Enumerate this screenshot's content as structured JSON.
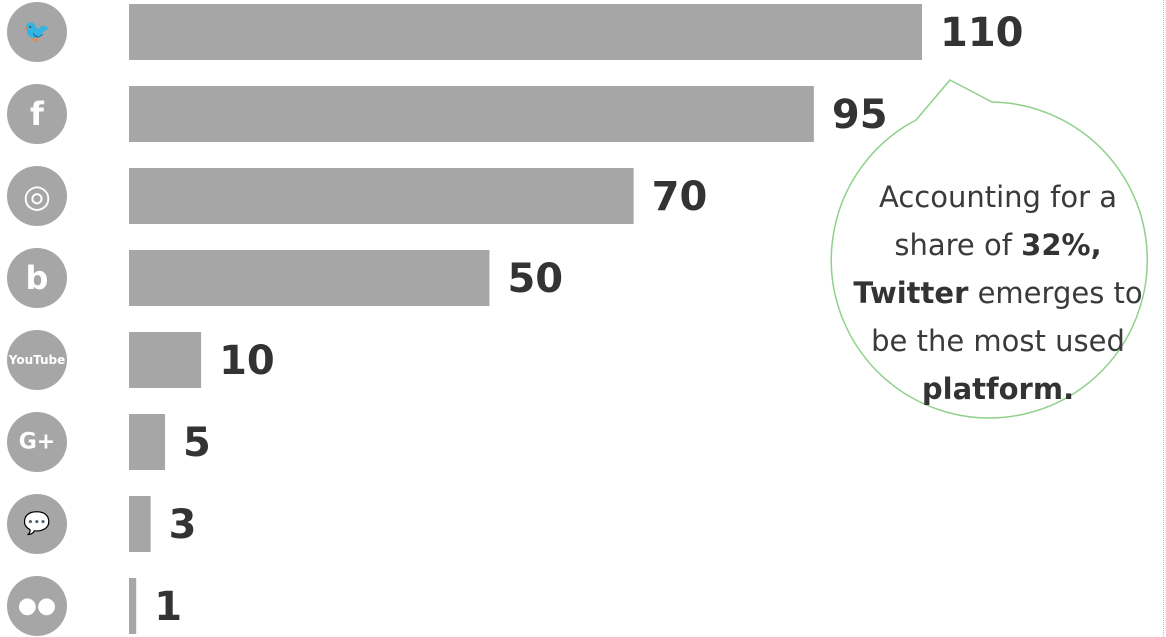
{
  "chart_data": {
    "type": "bar",
    "orientation": "horizontal",
    "categories": [
      "Twitter",
      "Facebook",
      "Instagram",
      "Blogger",
      "YouTube",
      "Google+",
      "Forums",
      "Flickr"
    ],
    "values": [
      110,
      95,
      70,
      50,
      10,
      5,
      3,
      1
    ],
    "value_labels": [
      "110",
      "95",
      "70",
      "50",
      "10",
      "5",
      "3",
      "1"
    ],
    "xlim": [
      0,
      110
    ],
    "grid": false,
    "legend": "none"
  },
  "icons": [
    {
      "name": "twitter-icon",
      "glyph": "🐦"
    },
    {
      "name": "facebook-icon",
      "glyph": "f"
    },
    {
      "name": "instagram-icon",
      "glyph": "◎"
    },
    {
      "name": "blogger-icon",
      "glyph": "b"
    },
    {
      "name": "youtube-icon",
      "glyph": "YouTube"
    },
    {
      "name": "google-plus-icon",
      "glyph": "G+"
    },
    {
      "name": "forums-icon",
      "glyph": "💬"
    },
    {
      "name": "flickr-icon",
      "glyph": "●●"
    }
  ],
  "callout": {
    "lines": [
      [
        {
          "text": "Accounting for a",
          "em": false
        }
      ],
      [
        {
          "text": "share of ",
          "em": false
        },
        {
          "text": "32%,",
          "em": true
        }
      ],
      [
        {
          "text": "Twitter",
          "em": true
        },
        {
          "text": " emerges to",
          "em": false
        }
      ],
      [
        {
          "text": "be the most used",
          "em": false
        }
      ],
      [
        {
          "text": "platform.",
          "em": true
        }
      ]
    ]
  },
  "colors": {
    "bar": "#a6a6a6",
    "icon": "#a6a6a6",
    "label": "#333333",
    "callout_border": "#8fd18a"
  }
}
